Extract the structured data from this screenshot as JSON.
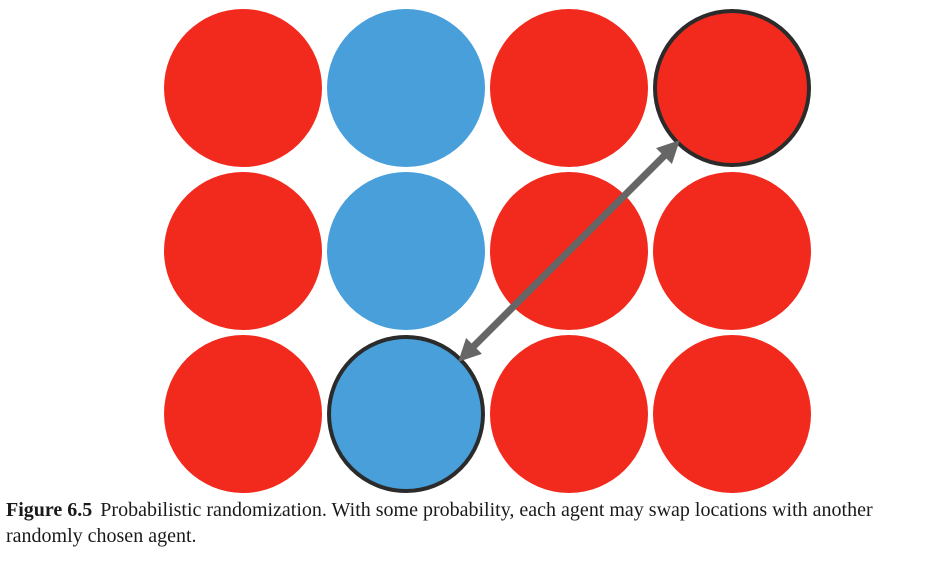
{
  "colors": {
    "red": "#f2291d",
    "blue": "#489fda",
    "outline": "#2b2b2b",
    "arrow": "#666666"
  },
  "grid": {
    "rows": 3,
    "columns": 4,
    "agents": [
      [
        "red",
        "blue",
        "red",
        "red"
      ],
      [
        "red",
        "blue",
        "red",
        "red"
      ],
      [
        "red",
        "blue",
        "red",
        "red"
      ]
    ],
    "selected": [
      {
        "row": 0,
        "col": 3
      },
      {
        "row": 2,
        "col": 1
      }
    ]
  },
  "caption": {
    "label": "Figure 6.5",
    "text": "Probabilistic randomization. With some probability, each agent may swap locations with another randomly chosen agent."
  }
}
